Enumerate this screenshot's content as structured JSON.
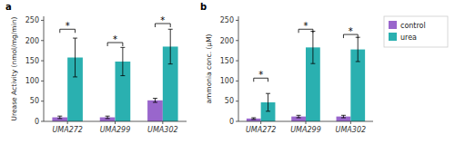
{
  "chart_data": [
    {
      "type": "bar",
      "title": "a",
      "ylabel": "Urease Activity (nmol/mg/min)",
      "categories": [
        "UMA272",
        "UMA299",
        "UMA302"
      ],
      "series": [
        {
          "color": "#9966cc",
          "values": [
            10,
            10,
            52
          ],
          "errors": [
            3,
            3,
            5
          ]
        },
        {
          "color": "#2ab0b0",
          "values": [
            158,
            148,
            185
          ],
          "errors": [
            48,
            35,
            43
          ]
        }
      ],
      "annotations": [
        {
          "text": "*",
          "y": 228
        },
        {
          "text": "*",
          "y": 195
        },
        {
          "text": "*",
          "y": 242
        }
      ],
      "ylim": [
        0,
        260
      ],
      "yticks": [
        0,
        50,
        100,
        150,
        200,
        250
      ],
      "grid": false
    },
    {
      "type": "bar",
      "title": "b",
      "ylabel": "ammonia conc. (μM)",
      "categories": [
        "UMA272",
        "UMA299",
        "UMA302"
      ],
      "series": [
        {
          "name": "control",
          "color": "#9966cc",
          "values": [
            7,
            12,
            12
          ],
          "errors": [
            2,
            3,
            3
          ]
        },
        {
          "name": "urea",
          "color": "#2ab0b0",
          "values": [
            47,
            183,
            178
          ],
          "errors": [
            22,
            40,
            30
          ]
        }
      ],
      "annotations": [
        {
          "text": "*",
          "y": 107
        },
        {
          "text": "*",
          "y": 228
        },
        {
          "text": "*",
          "y": 215
        }
      ],
      "ylim": [
        0,
        260
      ],
      "yticks": [
        0,
        50,
        100,
        150,
        200,
        250
      ],
      "grid": false,
      "legend": "right"
    }
  ]
}
